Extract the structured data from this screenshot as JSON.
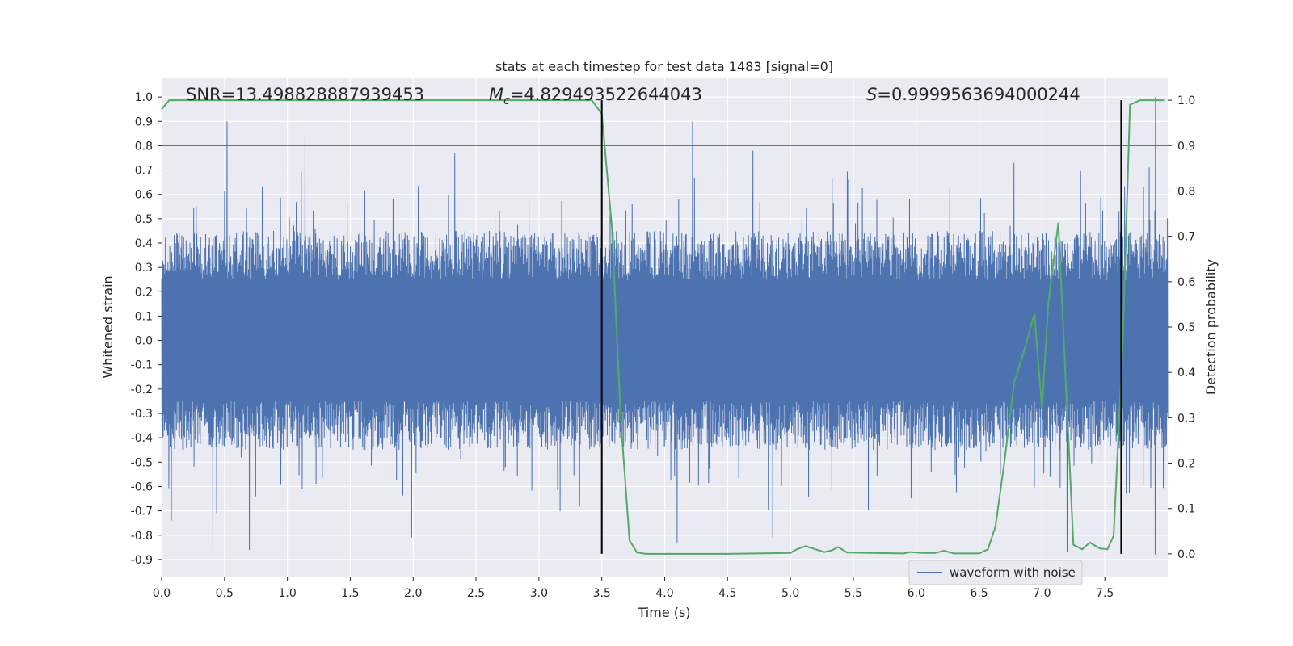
{
  "chart_data": {
    "type": "line",
    "title": "stats at each timestep for test data 1483 [signal=0]",
    "xlabel": "Time (s)",
    "ylabel": "Whitened strain",
    "y2label": "Detection probability",
    "xlim": [
      0.0,
      8.0
    ],
    "ylim": [
      -0.97,
      1.08
    ],
    "y2lim": [
      -0.05,
      1.05
    ],
    "xticks": [
      "0.0",
      "0.5",
      "1.0",
      "1.5",
      "2.0",
      "2.5",
      "3.0",
      "3.5",
      "4.0",
      "4.5",
      "5.0",
      "5.5",
      "6.0",
      "6.5",
      "7.0",
      "7.5"
    ],
    "yticks": [
      "1.0",
      "0.9",
      "0.8",
      "0.7",
      "0.6",
      "0.5",
      "0.4",
      "0.3",
      "0.2",
      "0.1",
      "0.0",
      "-0.1",
      "-0.2",
      "-0.3",
      "-0.4",
      "-0.5",
      "-0.6",
      "-0.7",
      "-0.8",
      "-0.9"
    ],
    "y2ticks": [
      "1.0",
      "0.9",
      "0.8",
      "0.7",
      "0.6",
      "0.5",
      "0.4",
      "0.3",
      "0.2",
      "0.1",
      "0.0"
    ],
    "grid": true,
    "legend": {
      "placement": "bottom-right",
      "entries": [
        "waveform with noise"
      ]
    },
    "annotations": {
      "snr": "SNR=13.498828887939453",
      "mc_symbol": "M",
      "mc_sub": "c",
      "mc_value": "=4.829493522644043",
      "s_symbol": "S",
      "s_value": "=0.9999563694000244"
    },
    "threshold_y2": 0.9,
    "vlines": [
      3.5,
      7.63
    ],
    "series": [
      {
        "name": "waveform with noise",
        "color": "#4c72b0",
        "envelope": {
          "note_free": true,
          "typical_upper": 0.45,
          "typical_lower": -0.45,
          "peaks_upper": [
            [
              0.52,
              0.9
            ],
            [
              1.14,
              0.86
            ],
            [
              4.22,
              0.9
            ],
            [
              7.9,
              1.0
            ],
            [
              2.33,
              0.77
            ],
            [
              4.7,
              0.78
            ]
          ],
          "peaks_lower": [
            [
              0.41,
              -0.85
            ],
            [
              0.7,
              -0.86
            ],
            [
              1.99,
              -0.81
            ],
            [
              4.1,
              -0.83
            ],
            [
              4.86,
              -0.81
            ],
            [
              7.2,
              -0.87
            ],
            [
              7.9,
              -0.88
            ],
            [
              0.08,
              -0.74
            ]
          ]
        }
      },
      {
        "name": "",
        "color": "#55a868",
        "axis": "right",
        "x": [
          0.0,
          0.06,
          0.5,
          1.0,
          1.5,
          2.0,
          2.5,
          3.0,
          3.35,
          3.42,
          3.5,
          3.58,
          3.65,
          3.72,
          3.78,
          3.85,
          4.0,
          4.5,
          5.0,
          5.05,
          5.12,
          5.2,
          5.27,
          5.33,
          5.38,
          5.45,
          5.9,
          5.95,
          6.05,
          6.15,
          6.22,
          6.3,
          6.5,
          6.57,
          6.63,
          6.7,
          6.78,
          6.85,
          6.94,
          7.0,
          7.05,
          7.13,
          7.25,
          7.32,
          7.38,
          7.46,
          7.52,
          7.57,
          7.64,
          7.7,
          7.78,
          7.97
        ],
        "values": [
          0.98,
          1.0,
          1.0,
          1.0,
          1.0,
          1.0,
          1.0,
          1.0,
          1.0,
          1.0,
          0.97,
          0.72,
          0.3,
          0.03,
          0.003,
          0.0,
          0.0,
          0.0,
          0.002,
          0.01,
          0.017,
          0.01,
          0.004,
          0.008,
          0.015,
          0.003,
          0.001,
          0.004,
          0.002,
          0.002,
          0.007,
          0.001,
          0.001,
          0.01,
          0.06,
          0.2,
          0.38,
          0.44,
          0.53,
          0.32,
          0.55,
          0.73,
          0.02,
          0.01,
          0.025,
          0.012,
          0.01,
          0.04,
          0.45,
          0.99,
          1.0,
          1.0
        ]
      }
    ]
  }
}
